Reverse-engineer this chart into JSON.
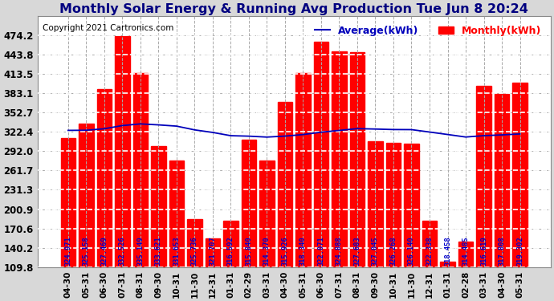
{
  "title": "Monthly Solar Energy & Running Avg Production Tue Jun 8 20:24",
  "copyright": "Copyright 2021 Cartronics.com",
  "legend_avg": "Average(kWh)",
  "legend_monthly": "Monthly(kWh)",
  "categories": [
    "04-30",
    "05-31",
    "06-30",
    "07-31",
    "08-31",
    "09-30",
    "10-31",
    "11-30",
    "12-31",
    "01-31",
    "02-29",
    "03-31",
    "04-30",
    "05-31",
    "06-30",
    "07-31",
    "08-31",
    "09-30",
    "10-31",
    "11-30",
    "12-31",
    "01-31",
    "02-28",
    "03-31",
    "04-30",
    "05-31"
  ],
  "bar_values": [
    313.0,
    335.0,
    390.0,
    474.0,
    415.0,
    300.0,
    278.0,
    185.0,
    155.0,
    183.0,
    310.0,
    278.0,
    370.0,
    415.0,
    465.0,
    450.0,
    448.0,
    308.0,
    305.0,
    304.0,
    183.0,
    118.0,
    150.0,
    395.0,
    383.0,
    400.0
  ],
  "avg_values": [
    324.971,
    325.158,
    327.469,
    332.526,
    335.149,
    333.621,
    331.653,
    325.736,
    321.707,
    316.592,
    315.84,
    314.37,
    315.926,
    318.34,
    322.071,
    324.888,
    327.683,
    327.045,
    326.268,
    326.14,
    322.338,
    318.458,
    314.485,
    316.619,
    317.808,
    319.302
  ],
  "bar_labels": [
    "324.971",
    "325.158",
    "327.469",
    "332.526",
    "335.149",
    "333.621",
    "331.653",
    "325.736",
    "321.707",
    "316.592",
    "315.840",
    "314.370",
    "315.926",
    "318.340",
    "322.071",
    "324.888",
    "327.683",
    "327.045",
    "326.268",
    "326.140",
    "322.338",
    "318.458",
    "314.485",
    "316.619",
    "317.808",
    "319.302"
  ],
  "bar_color": "#ff0000",
  "avg_line_color": "#0000bb",
  "background_color": "#d8d8d8",
  "plot_bg_color": "#ffffff",
  "title_color": "#000080",
  "copyright_color": "#000000",
  "bar_label_color": "#0000cc",
  "ylim_min": 109.8,
  "ylim_max": 504.6,
  "yticks": [
    109.8,
    140.2,
    170.6,
    200.9,
    231.3,
    261.7,
    292.0,
    322.4,
    352.7,
    383.1,
    413.5,
    443.8,
    474.2
  ],
  "grid_color": "#aaaaaa",
  "title_fontsize": 11.5,
  "copyright_fontsize": 7.5,
  "tick_fontsize": 7.5,
  "label_fontsize": 6.2,
  "ytick_fontsize": 8.5,
  "legend_fontsize": 9.0,
  "figwidth": 6.9,
  "figheight": 3.75,
  "dpi": 100
}
